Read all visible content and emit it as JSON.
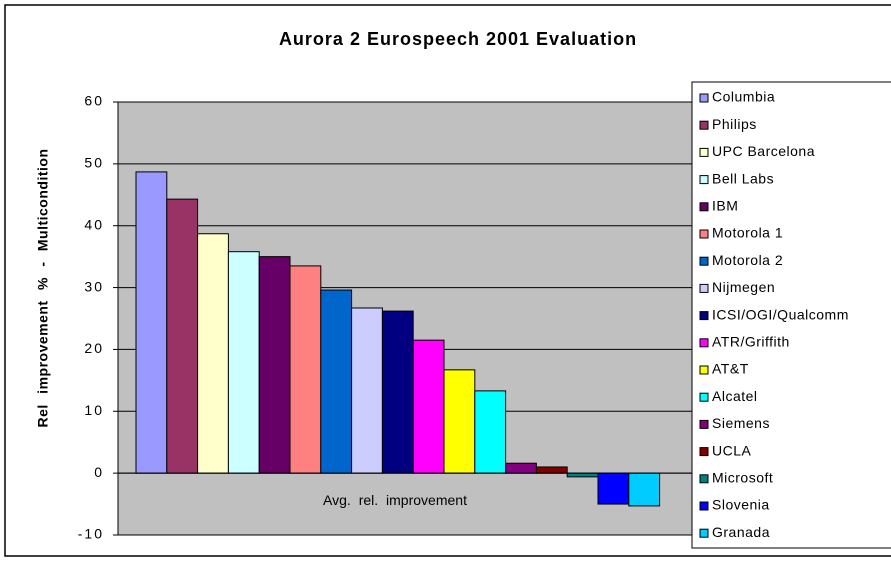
{
  "chart_data": {
    "type": "bar",
    "title": "Aurora 2 Eurospeech 2001 Evaluation",
    "y_label": "Rel improvement % - Multicondition",
    "categories": [
      "Avg. rel. improvement"
    ],
    "ylim": [
      -10,
      60
    ],
    "yticks": [
      -10,
      0,
      10,
      20,
      30,
      40,
      50,
      60
    ],
    "grid": true,
    "legend": "right",
    "series": [
      {
        "name": "Columbia",
        "color": "#9999ff",
        "values": [
          48.7
        ]
      },
      {
        "name": "Philips",
        "color": "#993366",
        "values": [
          44.3
        ]
      },
      {
        "name": "UPC Barcelona",
        "color": "#ffffcc",
        "values": [
          38.7
        ]
      },
      {
        "name": "Bell Labs",
        "color": "#ccffff",
        "values": [
          35.8
        ]
      },
      {
        "name": "IBM",
        "color": "#660066",
        "values": [
          35.0
        ]
      },
      {
        "name": "Motorola 1",
        "color": "#ff8080",
        "values": [
          33.5
        ]
      },
      {
        "name": "Motorola 2",
        "color": "#0066cc",
        "values": [
          29.6
        ]
      },
      {
        "name": "Nijmegen",
        "color": "#ccccff",
        "values": [
          26.7
        ]
      },
      {
        "name": "ICSI/OGI/Qualcomm",
        "color": "#000080",
        "values": [
          26.2
        ]
      },
      {
        "name": "ATR/Griffith",
        "color": "#ff00ff",
        "values": [
          21.5
        ]
      },
      {
        "name": "AT&T",
        "color": "#ffff00",
        "values": [
          16.7
        ]
      },
      {
        "name": "Alcatel",
        "color": "#00ffff",
        "values": [
          13.3
        ]
      },
      {
        "name": "Siemens",
        "color": "#800080",
        "values": [
          1.6
        ]
      },
      {
        "name": "UCLA",
        "color": "#800000",
        "values": [
          1.0
        ]
      },
      {
        "name": "Microsoft",
        "color": "#008080",
        "values": [
          -0.6
        ]
      },
      {
        "name": "Slovenia",
        "color": "#0000ff",
        "values": [
          -5.0
        ]
      },
      {
        "name": "Granada",
        "color": "#00ccff",
        "values": [
          -5.3
        ]
      }
    ]
  }
}
